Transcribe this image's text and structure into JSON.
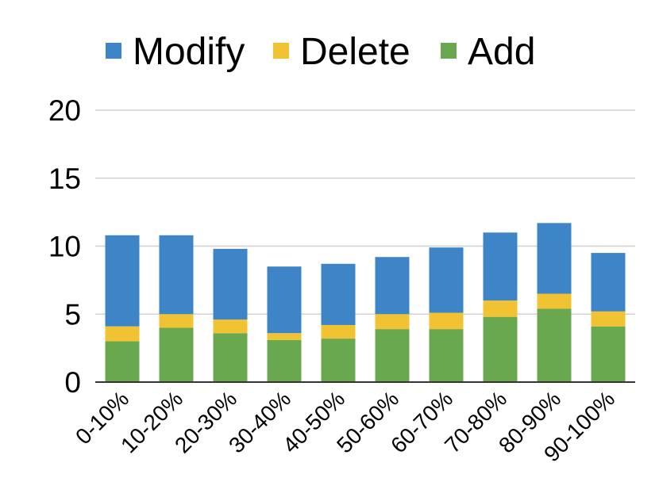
{
  "chart_data": {
    "type": "bar",
    "stacked": true,
    "categories": [
      "0-10%",
      "10-20%",
      "20-30%",
      "30-40%",
      "40-50%",
      "50-60%",
      "60-70%",
      "70-80%",
      "80-90%",
      "90-100%"
    ],
    "series": [
      {
        "name": "Add",
        "color": "#6AA84F",
        "values": [
          3.0,
          4.0,
          3.6,
          3.1,
          3.2,
          3.9,
          3.9,
          4.8,
          5.4,
          4.1
        ]
      },
      {
        "name": "Delete",
        "color": "#F1C232",
        "values": [
          1.1,
          1.0,
          1.0,
          0.5,
          1.0,
          1.1,
          1.2,
          1.2,
          1.1,
          1.1
        ]
      },
      {
        "name": "Modify",
        "color": "#3D85C6",
        "values": [
          6.7,
          5.8,
          5.2,
          4.9,
          4.5,
          4.2,
          4.8,
          5.0,
          5.2,
          4.3
        ]
      }
    ],
    "legend_order": [
      "Modify",
      "Delete",
      "Add"
    ],
    "legend_position": "top",
    "ylim": [
      0,
      20
    ],
    "yticks": [
      0,
      5,
      10,
      15,
      20
    ],
    "grid": true,
    "title": "",
    "xlabel": "",
    "ylabel": ""
  }
}
